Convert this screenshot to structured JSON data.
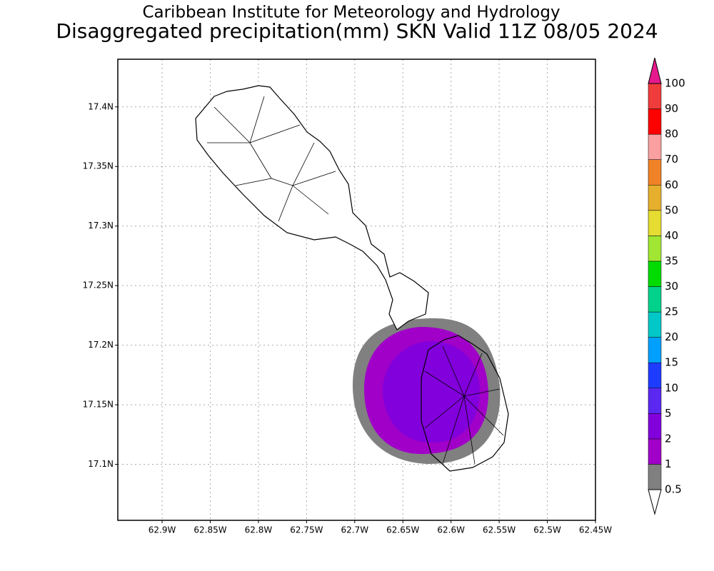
{
  "chart_data": {
    "type": "map",
    "title": "Caribbean Institute for Meteorology and Hydrology",
    "subtitle": "Disaggregated precipitation(mm) SKN Valid 11Z 08/05 2024",
    "xlim": [
      -62.946,
      -62.45
    ],
    "ylim": [
      17.053,
      17.44
    ],
    "xticks": [
      {
        "value": -62.9,
        "label": "62.9W"
      },
      {
        "value": -62.85,
        "label": "62.85W"
      },
      {
        "value": -62.8,
        "label": "62.8W"
      },
      {
        "value": -62.75,
        "label": "62.75W"
      },
      {
        "value": -62.7,
        "label": "62.7W"
      },
      {
        "value": -62.65,
        "label": "62.65W"
      },
      {
        "value": -62.6,
        "label": "62.6W"
      },
      {
        "value": -62.55,
        "label": "62.55W"
      },
      {
        "value": -62.5,
        "label": "62.5W"
      },
      {
        "value": -62.45,
        "label": "62.45W"
      }
    ],
    "yticks": [
      {
        "value": 17.4,
        "label": "17.4N"
      },
      {
        "value": 17.35,
        "label": "17.35N"
      },
      {
        "value": 17.3,
        "label": "17.3N"
      },
      {
        "value": 17.25,
        "label": "17.25N"
      },
      {
        "value": 17.2,
        "label": "17.2N"
      },
      {
        "value": 17.15,
        "label": "17.15N"
      },
      {
        "value": 17.1,
        "label": "17.1N"
      }
    ],
    "grid": true,
    "colorbar": {
      "levels": [
        0.5,
        1,
        2,
        5,
        10,
        15,
        20,
        25,
        30,
        35,
        40,
        50,
        60,
        70,
        80,
        90,
        100
      ],
      "colors": [
        "#808080",
        "#a000c8",
        "#8200dc",
        "#5a28f0",
        "#1e3cff",
        "#00a0ff",
        "#00c8c8",
        "#00d28c",
        "#00dc00",
        "#a0e632",
        "#e6dc32",
        "#e6af2d",
        "#f08228",
        "#faa0a0",
        "#ff0000",
        "#f03c3c"
      ],
      "under_color": "#ffffff",
      "over_color": "#e6198c"
    }
  }
}
